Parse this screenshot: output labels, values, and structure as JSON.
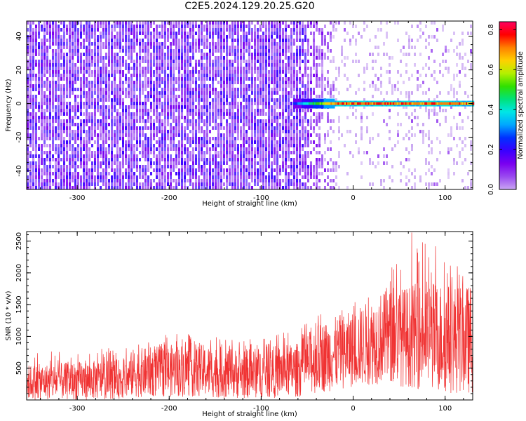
{
  "title": "C2E5.2024.129.20.25.G20",
  "colors": {
    "snr_line": "#f03232",
    "colormap": [
      "#ffffff",
      "#c9a6f2",
      "#9a49f0",
      "#7a00f0",
      "#3a00ff",
      "#0030ff",
      "#00a6ff",
      "#00e6e6",
      "#00e27a",
      "#30e000",
      "#b4f000",
      "#ffd000",
      "#ff8000",
      "#ff0000",
      "#ff0060"
    ]
  },
  "chart_data": [
    {
      "type": "heatmap",
      "title": "C2E5.2024.129.20.25.G20",
      "xlabel": "Height of straight line (km)",
      "ylabel": "Frequency (Hz)",
      "xlim": [
        -355,
        130
      ],
      "ylim": [
        -51,
        49
      ],
      "xticks": [
        -300,
        -200,
        -100,
        0,
        100
      ],
      "yticks": [
        -40,
        -20,
        0,
        20,
        40
      ],
      "colorbar": {
        "label": "Normalized spectral amplitude",
        "range": [
          0.0,
          0.84
        ],
        "ticks": [
          "0.0",
          "0.2",
          "0.4",
          "0.6",
          "0.8"
        ]
      },
      "features": {
        "noise_dominant_below_km": -60,
        "carrier_frequency_hz": 0,
        "carrier_visible_from_km": -65,
        "carrier_peak_amplitude": 0.84
      }
    },
    {
      "type": "line",
      "xlabel": "Height of straight line (km)",
      "ylabel": "SNR (10 * v/v)",
      "xlim": [
        -355,
        130
      ],
      "ylim": [
        0,
        2650
      ],
      "xticks": [
        -300,
        -200,
        -100,
        0,
        100
      ],
      "yticks": [
        500,
        1000,
        1500,
        2000,
        2500
      ],
      "envelope": {
        "x": [
          -355,
          -300,
          -245,
          -240,
          -180,
          -150,
          -120,
          -60,
          -40,
          0,
          30,
          60,
          80,
          100,
          130
        ],
        "low": [
          0,
          0,
          20,
          40,
          50,
          30,
          20,
          40,
          100,
          200,
          250,
          200,
          150,
          100,
          100
        ],
        "typical_high": [
          550,
          600,
          650,
          800,
          900,
          850,
          800,
          900,
          1200,
          1400,
          1700,
          1800,
          1900,
          1850,
          1800
        ],
        "max": [
          780,
          760,
          850,
          1000,
          1050,
          1000,
          950,
          1100,
          1350,
          1500,
          2200,
          2650,
          2600,
          2300,
          2200
        ]
      }
    }
  ]
}
